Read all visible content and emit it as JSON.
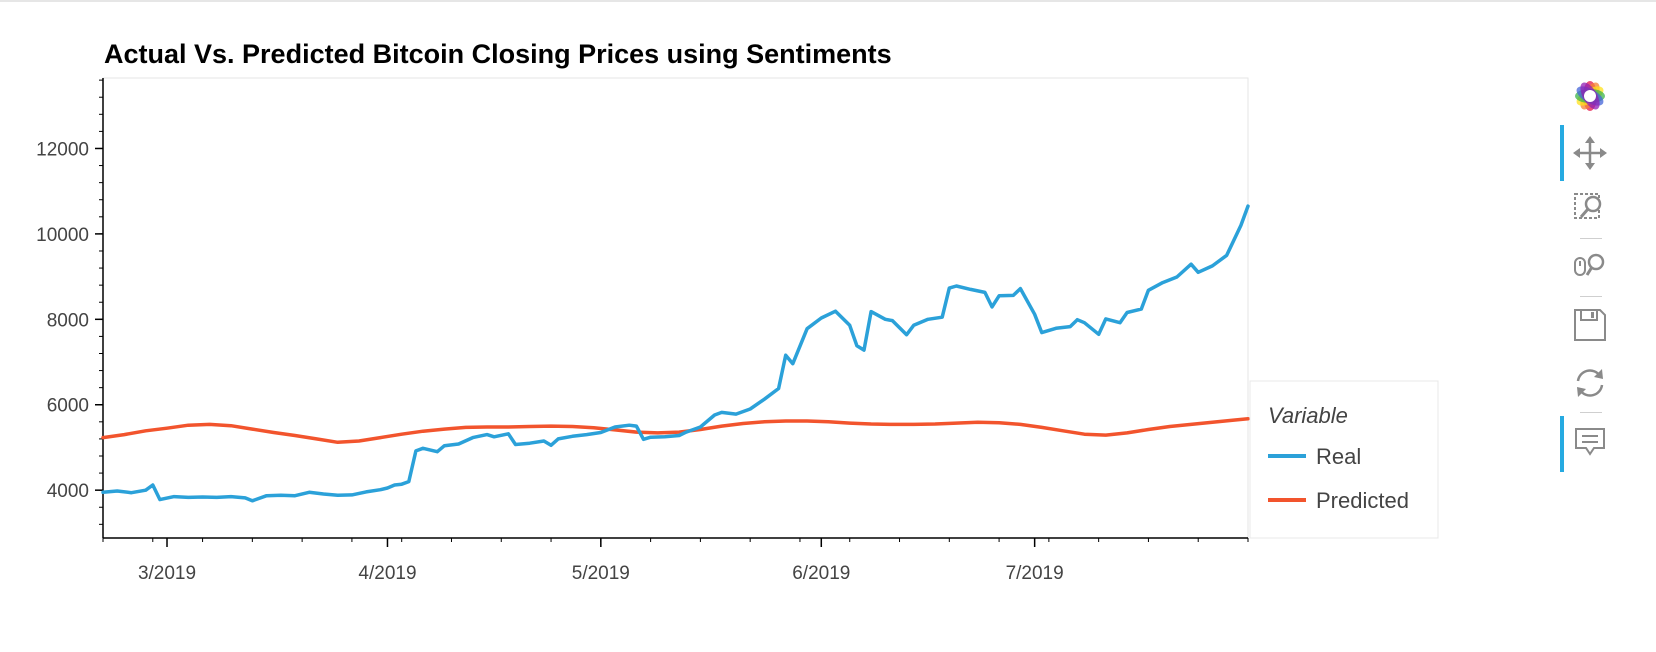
{
  "chart_data": {
    "type": "line",
    "title": "Actual Vs. Predicted Bitcoin Closing Prices using Sentiments",
    "xlabel": "",
    "ylabel": "",
    "x_range": [
      "2019-02-20",
      "2019-07-31"
    ],
    "ylim": [
      2880,
      13650
    ],
    "x_ticks": [
      {
        "date": "2019-03-01",
        "label": "3/2019"
      },
      {
        "date": "2019-04-01",
        "label": "4/2019"
      },
      {
        "date": "2019-05-01",
        "label": "5/2019"
      },
      {
        "date": "2019-06-01",
        "label": "6/2019"
      },
      {
        "date": "2019-07-01",
        "label": "7/2019"
      }
    ],
    "y_ticks": [
      4000,
      6000,
      8000,
      10000,
      12000
    ],
    "grid": false,
    "legend": {
      "title": "Variable",
      "position": "right"
    },
    "series": [
      {
        "name": "Real",
        "color": "#2ba1d9",
        "points": [
          [
            "2019-02-20",
            3950
          ],
          [
            "2019-02-22",
            3980
          ],
          [
            "2019-02-24",
            3940
          ],
          [
            "2019-02-26",
            4000
          ],
          [
            "2019-02-27",
            4120
          ],
          [
            "2019-02-28",
            3780
          ],
          [
            "2019-03-02",
            3850
          ],
          [
            "2019-03-04",
            3830
          ],
          [
            "2019-03-06",
            3840
          ],
          [
            "2019-03-08",
            3830
          ],
          [
            "2019-03-10",
            3850
          ],
          [
            "2019-03-12",
            3820
          ],
          [
            "2019-03-13",
            3750
          ],
          [
            "2019-03-15",
            3870
          ],
          [
            "2019-03-17",
            3880
          ],
          [
            "2019-03-19",
            3870
          ],
          [
            "2019-03-21",
            3950
          ],
          [
            "2019-03-23",
            3910
          ],
          [
            "2019-03-25",
            3880
          ],
          [
            "2019-03-27",
            3890
          ],
          [
            "2019-03-29",
            3960
          ],
          [
            "2019-03-31",
            4010
          ],
          [
            "2019-04-01",
            4050
          ],
          [
            "2019-04-02",
            4120
          ],
          [
            "2019-04-03",
            4140
          ],
          [
            "2019-04-04",
            4200
          ],
          [
            "2019-04-05",
            4920
          ],
          [
            "2019-04-06",
            4980
          ],
          [
            "2019-04-08",
            4900
          ],
          [
            "2019-04-09",
            5040
          ],
          [
            "2019-04-11",
            5080
          ],
          [
            "2019-04-13",
            5230
          ],
          [
            "2019-04-15",
            5300
          ],
          [
            "2019-04-16",
            5250
          ],
          [
            "2019-04-18",
            5320
          ],
          [
            "2019-04-19",
            5070
          ],
          [
            "2019-04-21",
            5100
          ],
          [
            "2019-04-23",
            5150
          ],
          [
            "2019-04-24",
            5050
          ],
          [
            "2019-04-25",
            5200
          ],
          [
            "2019-04-27",
            5260
          ],
          [
            "2019-04-29",
            5300
          ],
          [
            "2019-05-01",
            5350
          ],
          [
            "2019-05-03",
            5480
          ],
          [
            "2019-05-05",
            5520
          ],
          [
            "2019-05-06",
            5500
          ],
          [
            "2019-05-07",
            5190
          ],
          [
            "2019-05-08",
            5240
          ],
          [
            "2019-05-10",
            5250
          ],
          [
            "2019-05-12",
            5280
          ],
          [
            "2019-05-13",
            5360
          ],
          [
            "2019-05-15",
            5480
          ],
          [
            "2019-05-17",
            5760
          ],
          [
            "2019-05-18",
            5820
          ],
          [
            "2019-05-20",
            5780
          ],
          [
            "2019-05-22",
            5900
          ],
          [
            "2019-05-24",
            6130
          ],
          [
            "2019-05-26",
            6380
          ],
          [
            "2019-05-27",
            7160
          ],
          [
            "2019-05-28",
            6960
          ],
          [
            "2019-05-30",
            7780
          ],
          [
            "2019-06-01",
            8030
          ],
          [
            "2019-06-03",
            8190
          ],
          [
            "2019-06-05",
            7860
          ],
          [
            "2019-06-06",
            7380
          ],
          [
            "2019-06-07",
            7280
          ],
          [
            "2019-06-08",
            8180
          ],
          [
            "2019-06-10",
            8000
          ],
          [
            "2019-06-11",
            7970
          ],
          [
            "2019-06-13",
            7640
          ],
          [
            "2019-06-14",
            7860
          ],
          [
            "2019-06-16",
            8000
          ],
          [
            "2019-06-18",
            8050
          ],
          [
            "2019-06-19",
            8730
          ],
          [
            "2019-06-20",
            8780
          ],
          [
            "2019-06-22",
            8700
          ],
          [
            "2019-06-24",
            8630
          ],
          [
            "2019-06-25",
            8290
          ],
          [
            "2019-06-26",
            8550
          ],
          [
            "2019-06-28",
            8560
          ],
          [
            "2019-06-29",
            8720
          ],
          [
            "2019-07-01",
            8120
          ],
          [
            "2019-07-02",
            7690
          ],
          [
            "2019-07-04",
            7790
          ],
          [
            "2019-07-06",
            7830
          ],
          [
            "2019-07-07",
            7990
          ],
          [
            "2019-07-08",
            7920
          ],
          [
            "2019-07-10",
            7650
          ],
          [
            "2019-07-11",
            8010
          ],
          [
            "2019-07-13",
            7920
          ],
          [
            "2019-07-14",
            8160
          ],
          [
            "2019-07-16",
            8240
          ],
          [
            "2019-07-17",
            8680
          ],
          [
            "2019-07-19",
            8860
          ],
          [
            "2019-07-21",
            8990
          ],
          [
            "2019-07-23",
            9290
          ],
          [
            "2019-07-24",
            9100
          ],
          [
            "2019-07-26",
            9250
          ],
          [
            "2019-07-28",
            9500
          ],
          [
            "2019-07-30",
            10200
          ],
          [
            "2019-07-31",
            10650
          ]
        ]
      },
      {
        "name": "Predicted",
        "color": "#f2542d",
        "points": [
          [
            "2019-02-20",
            5230
          ],
          [
            "2019-02-23",
            5300
          ],
          [
            "2019-02-26",
            5390
          ],
          [
            "2019-03-01",
            5450
          ],
          [
            "2019-03-04",
            5520
          ],
          [
            "2019-03-07",
            5540
          ],
          [
            "2019-03-10",
            5510
          ],
          [
            "2019-03-13",
            5430
          ],
          [
            "2019-03-16",
            5350
          ],
          [
            "2019-03-19",
            5280
          ],
          [
            "2019-03-22",
            5200
          ],
          [
            "2019-03-25",
            5120
          ],
          [
            "2019-03-28",
            5150
          ],
          [
            "2019-03-31",
            5230
          ],
          [
            "2019-04-03",
            5310
          ],
          [
            "2019-04-06",
            5380
          ],
          [
            "2019-04-09",
            5430
          ],
          [
            "2019-04-12",
            5470
          ],
          [
            "2019-04-15",
            5480
          ],
          [
            "2019-04-18",
            5480
          ],
          [
            "2019-04-21",
            5490
          ],
          [
            "2019-04-24",
            5500
          ],
          [
            "2019-04-27",
            5490
          ],
          [
            "2019-04-30",
            5460
          ],
          [
            "2019-05-03",
            5410
          ],
          [
            "2019-05-06",
            5360
          ],
          [
            "2019-05-09",
            5340
          ],
          [
            "2019-05-12",
            5360
          ],
          [
            "2019-05-15",
            5420
          ],
          [
            "2019-05-18",
            5500
          ],
          [
            "2019-05-21",
            5560
          ],
          [
            "2019-05-24",
            5600
          ],
          [
            "2019-05-27",
            5620
          ],
          [
            "2019-05-30",
            5620
          ],
          [
            "2019-06-02",
            5600
          ],
          [
            "2019-06-05",
            5570
          ],
          [
            "2019-06-08",
            5550
          ],
          [
            "2019-06-11",
            5540
          ],
          [
            "2019-06-14",
            5540
          ],
          [
            "2019-06-17",
            5550
          ],
          [
            "2019-06-20",
            5570
          ],
          [
            "2019-06-23",
            5590
          ],
          [
            "2019-06-26",
            5580
          ],
          [
            "2019-06-29",
            5540
          ],
          [
            "2019-07-02",
            5470
          ],
          [
            "2019-07-05",
            5390
          ],
          [
            "2019-07-08",
            5310
          ],
          [
            "2019-07-11",
            5290
          ],
          [
            "2019-07-14",
            5340
          ],
          [
            "2019-07-17",
            5420
          ],
          [
            "2019-07-20",
            5490
          ],
          [
            "2019-07-23",
            5540
          ],
          [
            "2019-07-26",
            5590
          ],
          [
            "2019-07-29",
            5640
          ],
          [
            "2019-07-31",
            5670
          ]
        ]
      }
    ]
  },
  "toolbar": {
    "logo_icon": "bokeh-logo-icon",
    "tools": [
      "pan-icon",
      "box-zoom-icon",
      "wheel-zoom-icon",
      "save-icon",
      "reset-icon",
      "hover-icon"
    ]
  }
}
